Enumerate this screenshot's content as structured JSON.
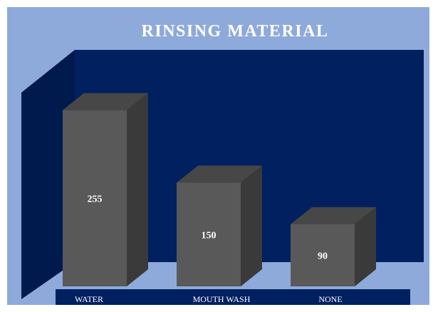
{
  "chart_data": {
    "type": "bar",
    "title": "RINSING MATERIAL",
    "categories": [
      "WATER",
      "MOUTH WASH",
      "NONE"
    ],
    "values": [
      255,
      150,
      90
    ],
    "xlabel": "",
    "ylabel": "",
    "ylim": [
      0,
      300
    ],
    "grid": false,
    "legend": "none",
    "colors": {
      "background": "#8eaadb",
      "back_wall": "#002060",
      "side_wall": "#001a4d",
      "category_band": "#002060",
      "bar_front": "#595959",
      "bar_top": "#474747",
      "bar_side": "#3a3a3a",
      "title_text": "#ffffff",
      "label_text": "#ffffff"
    }
  }
}
